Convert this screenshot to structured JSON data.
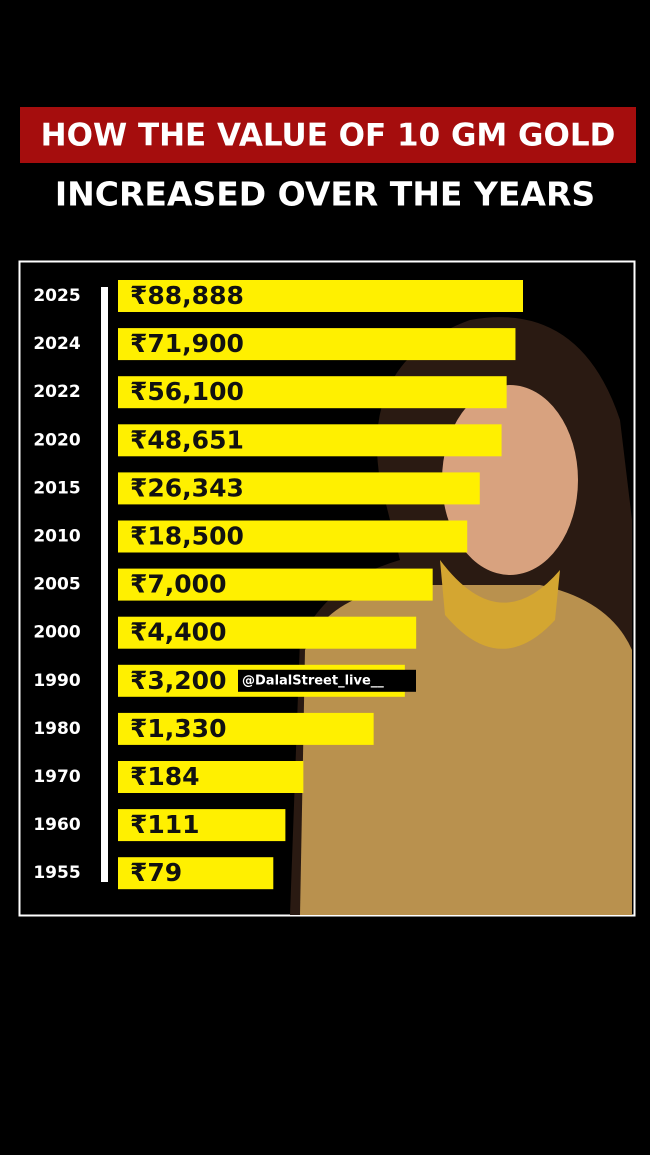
{
  "chart_data": {
    "type": "bar",
    "orientation": "horizontal",
    "title": "HOW THE VALUE OF 10 GM GOLD",
    "subtitle": "INCREASED OVER THE YEARS",
    "categories": [
      "2025",
      "2024",
      "2022",
      "2020",
      "2015",
      "2010",
      "2005",
      "2000",
      "1990",
      "1980",
      "1970",
      "1960",
      "1955"
    ],
    "values": [
      88888,
      71900,
      56100,
      48651,
      26343,
      18500,
      7000,
      4400,
      3200,
      1330,
      184,
      111,
      79
    ],
    "value_labels": [
      "₹88,888",
      "₹71,900",
      "₹56,100",
      "₹48,651",
      "₹26,343",
      "₹18,500",
      "₹7,000",
      "₹4,400",
      "₹3,200",
      "₹1,330",
      "₹184",
      "₹111",
      "₹79"
    ],
    "color": "#fff000",
    "log_scale": true,
    "watermark": "@DalalStreet_live__"
  }
}
